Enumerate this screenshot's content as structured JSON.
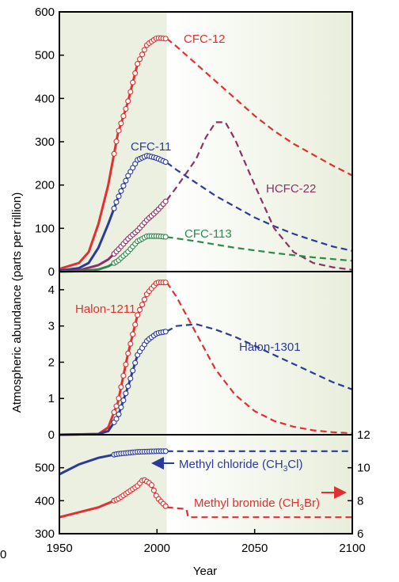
{
  "chart_data": {
    "type": "line",
    "xlabel": "Year",
    "ylabel": "Atmospheric abundance (parts per trillion)",
    "xlim": [
      1950,
      2100
    ],
    "x_ticks": [
      "1950",
      "2000",
      "2050",
      "2100"
    ],
    "observed_until": 2005,
    "colors": {
      "cfc12": "#e03030",
      "cfc11": "#2a3a9a",
      "hcfc22": "#8e3066",
      "cfc113": "#2a8a4a",
      "shade": "#ecf0e0",
      "frame": "#000000"
    },
    "panels": [
      {
        "name": "top",
        "ylim": [
          0,
          600
        ],
        "y_ticks": [
          "0",
          "100",
          "200",
          "300",
          "400",
          "500",
          "600"
        ],
        "series": [
          {
            "name": "CFC-12",
            "color": "#e03030",
            "observed": [
              [
                1950,
                6
              ],
              [
                1960,
                20
              ],
              [
                1965,
                45
              ],
              [
                1970,
                110
              ],
              [
                1975,
                200
              ],
              [
                1980,
                320
              ],
              [
                1985,
                390
              ],
              [
                1990,
                480
              ],
              [
                1995,
                525
              ],
              [
                2000,
                540
              ],
              [
                2005,
                538
              ]
            ],
            "projected": [
              [
                2005,
                538
              ],
              [
                2010,
                520
              ],
              [
                2020,
                480
              ],
              [
                2030,
                440
              ],
              [
                2040,
                400
              ],
              [
                2050,
                360
              ],
              [
                2060,
                325
              ],
              [
                2070,
                295
              ],
              [
                2080,
                270
              ],
              [
                2090,
                245
              ],
              [
                2100,
                222
              ]
            ]
          },
          {
            "name": "CFC-11",
            "color": "#2a3a9a",
            "observed": [
              [
                1950,
                2
              ],
              [
                1960,
                8
              ],
              [
                1965,
                20
              ],
              [
                1970,
                55
              ],
              [
                1975,
                110
              ],
              [
                1980,
                170
              ],
              [
                1985,
                220
              ],
              [
                1990,
                258
              ],
              [
                1995,
                268
              ],
              [
                2000,
                262
              ],
              [
                2005,
                252
              ]
            ],
            "projected": [
              [
                2005,
                252
              ],
              [
                2010,
                235
              ],
              [
                2020,
                205
              ],
              [
                2030,
                175
              ],
              [
                2040,
                150
              ],
              [
                2050,
                125
              ],
              [
                2060,
                105
              ],
              [
                2070,
                87
              ],
              [
                2080,
                72
              ],
              [
                2090,
                58
              ],
              [
                2100,
                48
              ]
            ]
          },
          {
            "name": "HCFC-22",
            "color": "#8e3066",
            "observed": [
              [
                1950,
                0
              ],
              [
                1960,
                3
              ],
              [
                1970,
                15
              ],
              [
                1975,
                28
              ],
              [
                1980,
                50
              ],
              [
                1985,
                75
              ],
              [
                1990,
                95
              ],
              [
                1995,
                120
              ],
              [
                2000,
                140
              ],
              [
                2005,
                165
              ]
            ],
            "projected": [
              [
                2005,
                165
              ],
              [
                2010,
                195
              ],
              [
                2020,
                260
              ],
              [
                2025,
                310
              ],
              [
                2030,
                345
              ],
              [
                2035,
                345
              ],
              [
                2040,
                305
              ],
              [
                2050,
                200
              ],
              [
                2060,
                100
              ],
              [
                2070,
                45
              ],
              [
                2080,
                20
              ],
              [
                2090,
                10
              ],
              [
                2100,
                4
              ]
            ]
          },
          {
            "name": "CFC-113",
            "color": "#2a8a4a",
            "observed": [
              [
                1950,
                0
              ],
              [
                1960,
                1
              ],
              [
                1970,
                5
              ],
              [
                1975,
                12
              ],
              [
                1980,
                25
              ],
              [
                1985,
                45
              ],
              [
                1990,
                70
              ],
              [
                1995,
                82
              ],
              [
                2000,
                82
              ],
              [
                2005,
                80
              ]
            ],
            "projected": [
              [
                2005,
                80
              ],
              [
                2020,
                70
              ],
              [
                2040,
                55
              ],
              [
                2060,
                43
              ],
              [
                2080,
                33
              ],
              [
                2100,
                25
              ]
            ]
          }
        ]
      },
      {
        "name": "middle",
        "ylim": [
          0,
          4.5
        ],
        "y_ticks": [
          "0",
          "1",
          "2",
          "3",
          "4"
        ],
        "series": [
          {
            "name": "Halon-1211",
            "color": "#e03030",
            "observed": [
              [
                1950,
                0
              ],
              [
                1970,
                0.02
              ],
              [
                1975,
                0.2
              ],
              [
                1980,
                0.9
              ],
              [
                1985,
                2.2
              ],
              [
                1990,
                3.3
              ],
              [
                1995,
                3.9
              ],
              [
                2000,
                4.2
              ],
              [
                2005,
                4.2
              ]
            ],
            "projected": [
              [
                2005,
                4.2
              ],
              [
                2010,
                3.8
              ],
              [
                2020,
                2.8
              ],
              [
                2030,
                1.8
              ],
              [
                2040,
                1.1
              ],
              [
                2050,
                0.65
              ],
              [
                2060,
                0.38
              ],
              [
                2070,
                0.22
              ],
              [
                2080,
                0.12
              ],
              [
                2090,
                0.07
              ],
              [
                2100,
                0.04
              ]
            ]
          },
          {
            "name": "Halon-1301",
            "color": "#2a3a9a",
            "observed": [
              [
                1950,
                0
              ],
              [
                1970,
                0.02
              ],
              [
                1975,
                0.1
              ],
              [
                1980,
                0.5
              ],
              [
                1985,
                1.3
              ],
              [
                1990,
                2.2
              ],
              [
                1995,
                2.6
              ],
              [
                2000,
                2.8
              ],
              [
                2005,
                2.85
              ]
            ],
            "projected": [
              [
                2005,
                2.85
              ],
              [
                2010,
                3.0
              ],
              [
                2020,
                3.05
              ],
              [
                2030,
                2.9
              ],
              [
                2040,
                2.7
              ],
              [
                2050,
                2.45
              ],
              [
                2060,
                2.2
              ],
              [
                2070,
                1.95
              ],
              [
                2080,
                1.7
              ],
              [
                2090,
                1.45
              ],
              [
                2100,
                1.25
              ]
            ]
          }
        ]
      },
      {
        "name": "bottom",
        "ylim": [
          300,
          600
        ],
        "y_ticks": [
          "300",
          "400",
          "500"
        ],
        "y2lim": [
          6,
          12
        ],
        "y2_ticks": [
          "6",
          "8",
          "10",
          "12"
        ],
        "series": [
          {
            "name": "Methyl chloride (CH3Cl)",
            "color": "#2a3a9a",
            "observed": [
              [
                1950,
                480
              ],
              [
                1960,
                510
              ],
              [
                1970,
                530
              ],
              [
                1980,
                542
              ],
              [
                1990,
                548
              ],
              [
                2000,
                550
              ],
              [
                2005,
                550
              ]
            ],
            "projected": [
              [
                2005,
                550
              ],
              [
                2100,
                550
              ]
            ]
          },
          {
            "name": "Methyl bromide (CH3Br)",
            "axis": "right",
            "color": "#e03030",
            "observed": [
              [
                1950,
                7.0
              ],
              [
                1960,
                7.3
              ],
              [
                1970,
                7.6
              ],
              [
                1980,
                8.1
              ],
              [
                1990,
                8.9
              ],
              [
                1993,
                9.3
              ],
              [
                1997,
                9.0
              ],
              [
                2000,
                8.2
              ],
              [
                2005,
                7.6
              ]
            ],
            "projected": [
              [
                2005,
                7.6
              ],
              [
                2015,
                7.5
              ],
              [
                2016,
                7.0
              ],
              [
                2030,
                7.0
              ],
              [
                2100,
                7.0
              ]
            ]
          }
        ]
      }
    ],
    "labels": {
      "cfc12": "CFC-12",
      "cfc11": "CFC-11",
      "hcfc22": "HCFC-22",
      "cfc113": "CFC-113",
      "halon1211": "Halon-1211",
      "halon1301": "Halon-1301",
      "methyl_chloride": "Methyl chloride (CH",
      "methyl_chloride_sub": "3",
      "methyl_chloride_end": "Cl)",
      "methyl_bromide": "Methyl bromide (CH",
      "methyl_bromide_sub": "3",
      "methyl_bromide_end": "Br)"
    },
    "left_edge_tick": "0"
  }
}
